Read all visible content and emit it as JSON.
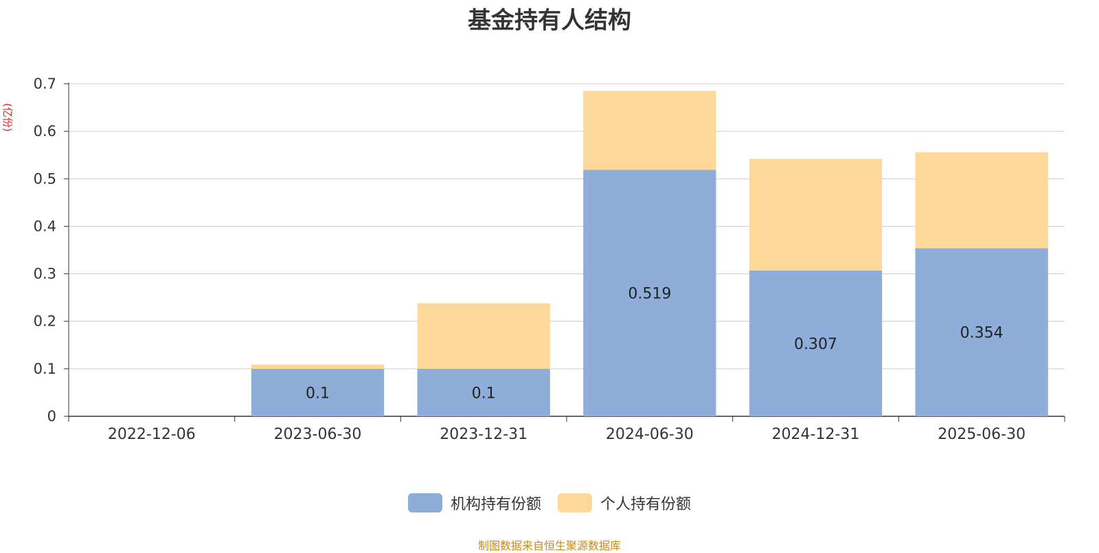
{
  "chart_data": {
    "type": "bar",
    "stacked": true,
    "title": "基金持有人结构",
    "ylabel": "(亿份)",
    "ylim": [
      0,
      0.7
    ],
    "yticks": [
      "0",
      "0.1",
      "0.2",
      "0.3",
      "0.4",
      "0.5",
      "0.6",
      "0.7"
    ],
    "categories": [
      "2022-12-06",
      "2023-06-30",
      "2023-12-31",
      "2024-06-30",
      "2024-12-31",
      "2025-06-30"
    ],
    "series": [
      {
        "name": "机构持有份额",
        "color": "#8eadd9",
        "values": [
          0,
          0.1,
          0.1,
          0.519,
          0.307,
          0.354
        ],
        "labels": [
          "",
          "0.1",
          "0.1",
          "0.519",
          "0.307",
          "0.354"
        ]
      },
      {
        "name": "个人持有份额",
        "color": "#fdd899",
        "values": [
          0,
          0.009,
          0.138,
          0.166,
          0.235,
          0.202
        ]
      }
    ],
    "grid": true,
    "legend_position": "bottom"
  },
  "source_note": "制图数据来自恒生聚源数据库"
}
